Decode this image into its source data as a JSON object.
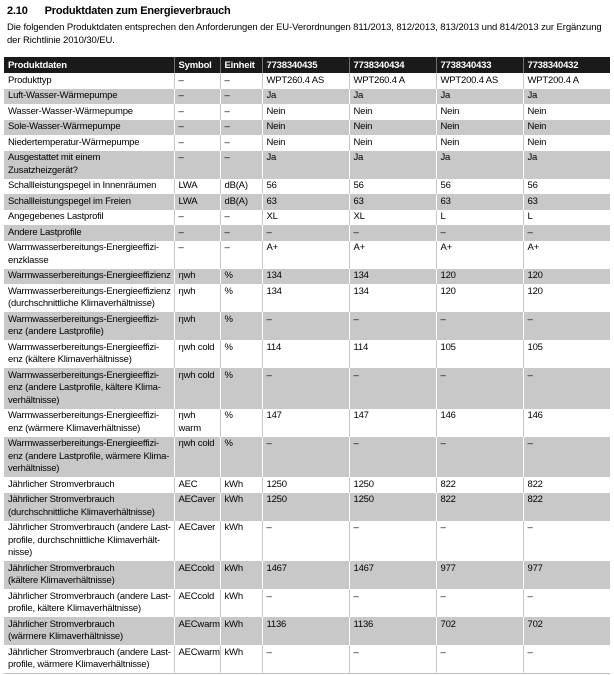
{
  "page": {
    "section_number": "2.10",
    "section_title": "Produktdaten zum Energieverbrauch",
    "intro": "Die folgenden Produktdaten entsprechen den Anforderungen der EU-Verordnungen 811/2013, 812/2013, 813/2013 und 814/2013 zur Ergänzung\nder Richtlinie 2010/30/EU."
  },
  "colors": {
    "table_header_bg": "#1a1a1a",
    "table_header_text": "#ffffff",
    "row_alt_bg": "#c8c8c8",
    "text": "#000000"
  },
  "table": {
    "headers": [
      "Produktdaten",
      "Symbol",
      "Einheit",
      "7738340435",
      "7738340434",
      "7738340433",
      "7738340432"
    ],
    "rows": [
      {
        "label": "Produkttyp",
        "symbol": "–",
        "unit": "–",
        "values": [
          "WPT260.4 AS",
          "WPT260.4 A",
          "WPT200.4 AS",
          "WPT200.4 A"
        ]
      },
      {
        "label": "Luft-Wasser-Wärmepumpe",
        "symbol": "–",
        "unit": "–",
        "values": [
          "Ja",
          "Ja",
          "Ja",
          "Ja"
        ]
      },
      {
        "label": "Wasser-Wasser-Wärmepumpe",
        "symbol": "–",
        "unit": "–",
        "values": [
          "Nein",
          "Nein",
          "Nein",
          "Nein"
        ]
      },
      {
        "label": "Sole-Wasser-Wärmepumpe",
        "symbol": "–",
        "unit": "–",
        "values": [
          "Nein",
          "Nein",
          "Nein",
          "Nein"
        ]
      },
      {
        "label": "Niedertemperatur-Wärmepumpe",
        "symbol": "–",
        "unit": "–",
        "values": [
          "Nein",
          "Nein",
          "Nein",
          "Nein"
        ]
      },
      {
        "label": "Ausgestattet mit einem Zusatzheizgerät?",
        "symbol": "–",
        "unit": "–",
        "values": [
          "Ja",
          "Ja",
          "Ja",
          "Ja"
        ]
      },
      {
        "label": "Schallleistungspegel in Innenräumen",
        "symbol": "LWA",
        "unit": "dB(A)",
        "values": [
          "56",
          "56",
          "56",
          "56"
        ]
      },
      {
        "label": "Schallleistungspegel im Freien",
        "symbol": "LWA",
        "unit": "dB(A)",
        "values": [
          "63",
          "63",
          "63",
          "63"
        ]
      },
      {
        "label": "Angegebenes Lastprofil",
        "symbol": "–",
        "unit": "–",
        "values": [
          "XL",
          "XL",
          "L",
          "L"
        ]
      },
      {
        "label": "Andere Lastprofile",
        "symbol": "–",
        "unit": "–",
        "values": [
          "–",
          "–",
          "–",
          "–"
        ]
      },
      {
        "label": "Warmwasserbereitungs-Energieeffizi-\nenzklasse",
        "symbol": "–",
        "unit": "–",
        "values": [
          "A+",
          "A+",
          "A+",
          "A+"
        ]
      },
      {
        "label": "Warmwasserbereitungs-Energieeffizienz",
        "symbol": "ηwh",
        "unit": "%",
        "values": [
          "134",
          "134",
          "120",
          "120"
        ]
      },
      {
        "label": "Warmwasserbereitungs-Energieeffizienz\n(durchschnittliche Klimaverhältnisse)",
        "symbol": "ηwh",
        "unit": "%",
        "values": [
          "134",
          "134",
          "120",
          "120"
        ]
      },
      {
        "label": "Warmwasserbereitungs-Energieeffizi-\nenz (andere Lastprofile)",
        "symbol": "ηwh",
        "unit": "%",
        "values": [
          "–",
          "–",
          "–",
          "–"
        ]
      },
      {
        "label": "Warmwasserbereitungs-Energieeffizi-\nenz (kältere Klimaverhältnisse)",
        "symbol": "ηwh cold",
        "unit": "%",
        "values": [
          "114",
          "114",
          "105",
          "105"
        ]
      },
      {
        "label": "Warmwasserbereitungs-Energieeffizi-\nenz (andere Lastprofile, kältere Klima-\nverhältnisse)",
        "symbol": "ηwh cold",
        "unit": "%",
        "values": [
          "–",
          "–",
          "–",
          "–"
        ]
      },
      {
        "label": "Warmwasserbereitungs-Energieeffizi-\nenz (wärmere Klimaverhältnisse)",
        "symbol": "ηwh warm",
        "unit": "%",
        "values": [
          "147",
          "147",
          "146",
          "146"
        ]
      },
      {
        "label": "Warmwasserbereitungs-Energieeffizi-\nenz (andere Lastprofile, wärmere Klima-\nverhältnisse)",
        "symbol": "ηwh cold",
        "unit": "%",
        "values": [
          "–",
          "–",
          "–",
          "–"
        ]
      },
      {
        "label": "Jährlicher Stromverbrauch",
        "symbol": "AEC",
        "unit": "kWh",
        "values": [
          "1250",
          "1250",
          "822",
          "822"
        ]
      },
      {
        "label": "Jährlicher Stromverbrauch\n(durchschnittliche Klimaverhältnisse)",
        "symbol": "AECaver",
        "unit": "kWh",
        "values": [
          "1250",
          "1250",
          "822",
          "822"
        ]
      },
      {
        "label": "Jährlicher Stromverbrauch (andere Last-\nprofile, durchschnittliche Klimaverhält-\nnisse)",
        "symbol": "AECaver",
        "unit": "kWh",
        "values": [
          "–",
          "–",
          "–",
          "–"
        ]
      },
      {
        "label": "Jährlicher Stromverbrauch\n(kältere Klimaverhältnisse)",
        "symbol": "AECcold",
        "unit": "kWh",
        "values": [
          "1467",
          "1467",
          "977",
          "977"
        ]
      },
      {
        "label": "Jährlicher Stromverbrauch (andere Last-\nprofile, kältere Klimaverhältnisse)",
        "symbol": "AECcold",
        "unit": "kWh",
        "values": [
          "–",
          "–",
          "–",
          "–"
        ]
      },
      {
        "label": "Jährlicher Stromverbrauch\n(wärmere Klimaverhältnisse)",
        "symbol": "AECwarm",
        "unit": "kWh",
        "values": [
          "1136",
          "1136",
          "702",
          "702"
        ]
      },
      {
        "label": "Jährlicher Stromverbrauch (andere Last-\nprofile, wärmere Klimaverhältnisse)",
        "symbol": "AECwarm",
        "unit": "kWh",
        "values": [
          "–",
          "–",
          "–",
          "–"
        ]
      }
    ]
  }
}
